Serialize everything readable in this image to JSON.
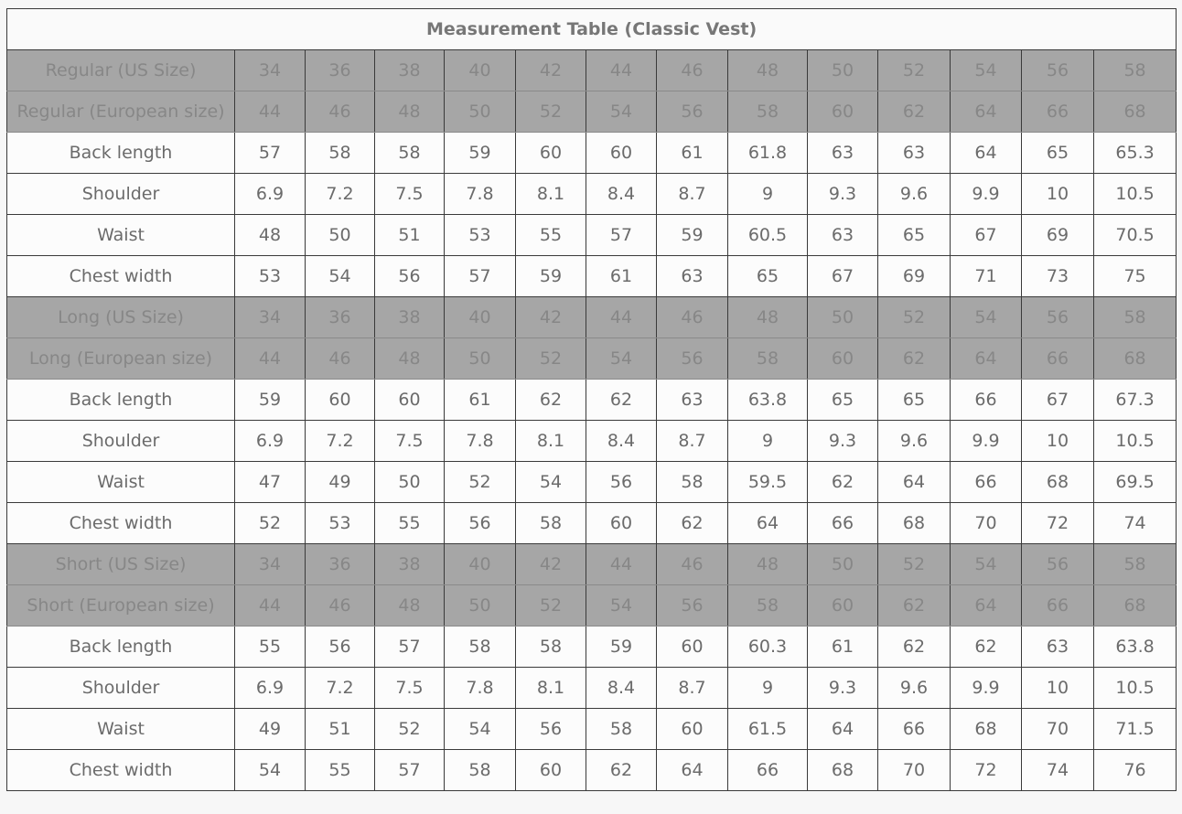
{
  "title": "Measurement Table (Classic Vest)",
  "colors": {
    "size_row_bg": "#a6a6a6",
    "text": "#6b6b6b",
    "border": "#3a3a3a"
  },
  "rows": [
    {
      "label": "Regular (US Size)",
      "type": "size",
      "values": [
        "34",
        "36",
        "38",
        "40",
        "42",
        "44",
        "46",
        "48",
        "50",
        "52",
        "54",
        "56",
        "58"
      ]
    },
    {
      "label": "Regular (European size)",
      "type": "size",
      "values": [
        "44",
        "46",
        "48",
        "50",
        "52",
        "54",
        "56",
        "58",
        "60",
        "62",
        "64",
        "66",
        "68"
      ]
    },
    {
      "label": "Back length",
      "type": "measure",
      "values": [
        "57",
        "58",
        "58",
        "59",
        "60",
        "60",
        "61",
        "61.8",
        "63",
        "63",
        "64",
        "65",
        "65.3"
      ]
    },
    {
      "label": "Shoulder",
      "type": "measure",
      "values": [
        "6.9",
        "7.2",
        "7.5",
        "7.8",
        "8.1",
        "8.4",
        "8.7",
        "9",
        "9.3",
        "9.6",
        "9.9",
        "10",
        "10.5"
      ]
    },
    {
      "label": "Waist",
      "type": "measure",
      "values": [
        "48",
        "50",
        "51",
        "53",
        "55",
        "57",
        "59",
        "60.5",
        "63",
        "65",
        "67",
        "69",
        "70.5"
      ]
    },
    {
      "label": "Chest width",
      "type": "measure",
      "values": [
        "53",
        "54",
        "56",
        "57",
        "59",
        "61",
        "63",
        "65",
        "67",
        "69",
        "71",
        "73",
        "75"
      ]
    },
    {
      "label": "Long (US Size)",
      "type": "size",
      "values": [
        "34",
        "36",
        "38",
        "40",
        "42",
        "44",
        "46",
        "48",
        "50",
        "52",
        "54",
        "56",
        "58"
      ]
    },
    {
      "label": "Long (European size)",
      "type": "size",
      "values": [
        "44",
        "46",
        "48",
        "50",
        "52",
        "54",
        "56",
        "58",
        "60",
        "62",
        "64",
        "66",
        "68"
      ]
    },
    {
      "label": "Back length",
      "type": "measure",
      "values": [
        "59",
        "60",
        "60",
        "61",
        "62",
        "62",
        "63",
        "63.8",
        "65",
        "65",
        "66",
        "67",
        "67.3"
      ]
    },
    {
      "label": "Shoulder",
      "type": "measure",
      "values": [
        "6.9",
        "7.2",
        "7.5",
        "7.8",
        "8.1",
        "8.4",
        "8.7",
        "9",
        "9.3",
        "9.6",
        "9.9",
        "10",
        "10.5"
      ]
    },
    {
      "label": "Waist",
      "type": "measure",
      "values": [
        "47",
        "49",
        "50",
        "52",
        "54",
        "56",
        "58",
        "59.5",
        "62",
        "64",
        "66",
        "68",
        "69.5"
      ]
    },
    {
      "label": "Chest width",
      "type": "measure",
      "values": [
        "52",
        "53",
        "55",
        "56",
        "58",
        "60",
        "62",
        "64",
        "66",
        "68",
        "70",
        "72",
        "74"
      ]
    },
    {
      "label": "Short (US Size)",
      "type": "size",
      "values": [
        "34",
        "36",
        "38",
        "40",
        "42",
        "44",
        "46",
        "48",
        "50",
        "52",
        "54",
        "56",
        "58"
      ]
    },
    {
      "label": "Short (European size)",
      "type": "size",
      "values": [
        "44",
        "46",
        "48",
        "50",
        "52",
        "54",
        "56",
        "58",
        "60",
        "62",
        "64",
        "66",
        "68"
      ]
    },
    {
      "label": "Back length",
      "type": "measure",
      "values": [
        "55",
        "56",
        "57",
        "58",
        "58",
        "59",
        "60",
        "60.3",
        "61",
        "62",
        "62",
        "63",
        "63.8"
      ]
    },
    {
      "label": "Shoulder",
      "type": "measure",
      "values": [
        "6.9",
        "7.2",
        "7.5",
        "7.8",
        "8.1",
        "8.4",
        "8.7",
        "9",
        "9.3",
        "9.6",
        "9.9",
        "10",
        "10.5"
      ]
    },
    {
      "label": "Waist",
      "type": "measure",
      "values": [
        "49",
        "51",
        "52",
        "54",
        "56",
        "58",
        "60",
        "61.5",
        "64",
        "66",
        "68",
        "70",
        "71.5"
      ]
    },
    {
      "label": "Chest width",
      "type": "measure",
      "values": [
        "54",
        "55",
        "57",
        "58",
        "60",
        "62",
        "64",
        "66",
        "68",
        "70",
        "72",
        "74",
        "76"
      ]
    }
  ]
}
